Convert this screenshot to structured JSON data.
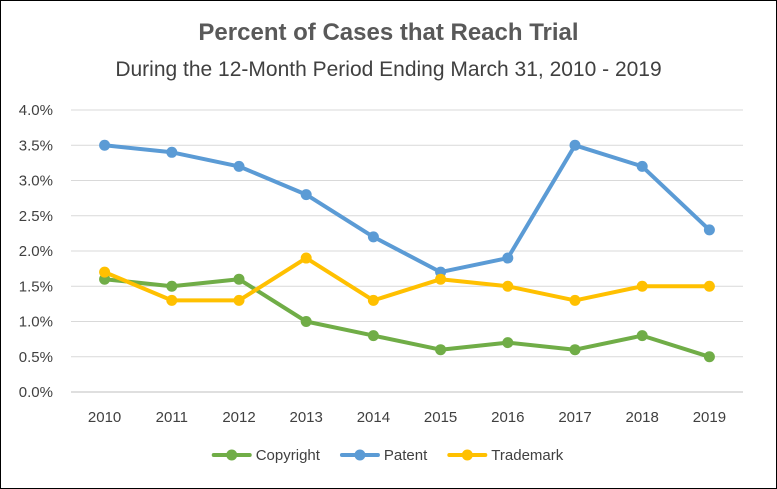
{
  "chart_data": {
    "type": "line",
    "title": "Percent of Cases that Reach Trial",
    "subtitle": "During the 12-Month Period Ending March 31, 2010 - 2019",
    "categories": [
      "2010",
      "2011",
      "2012",
      "2013",
      "2014",
      "2015",
      "2016",
      "2017",
      "2018",
      "2019"
    ],
    "y_ticks": [
      "0.0%",
      "0.5%",
      "1.0%",
      "1.5%",
      "2.0%",
      "2.5%",
      "3.0%",
      "3.5%",
      "4.0%"
    ],
    "ylim": [
      0,
      4
    ],
    "grid": true,
    "legend_position": "bottom",
    "series": [
      {
        "name": "Copyright",
        "color": "#70AD47",
        "values": [
          1.6,
          1.5,
          1.6,
          1.0,
          0.8,
          0.6,
          0.7,
          0.6,
          0.8,
          0.5
        ]
      },
      {
        "name": "Patent",
        "color": "#5B9BD5",
        "values": [
          3.5,
          3.4,
          3.2,
          2.8,
          2.2,
          1.7,
          1.9,
          3.5,
          3.2,
          2.3
        ]
      },
      {
        "name": "Trademark",
        "color": "#FFC000",
        "values": [
          1.7,
          1.3,
          1.3,
          1.9,
          1.3,
          1.6,
          1.5,
          1.3,
          1.5,
          1.5
        ]
      }
    ]
  }
}
